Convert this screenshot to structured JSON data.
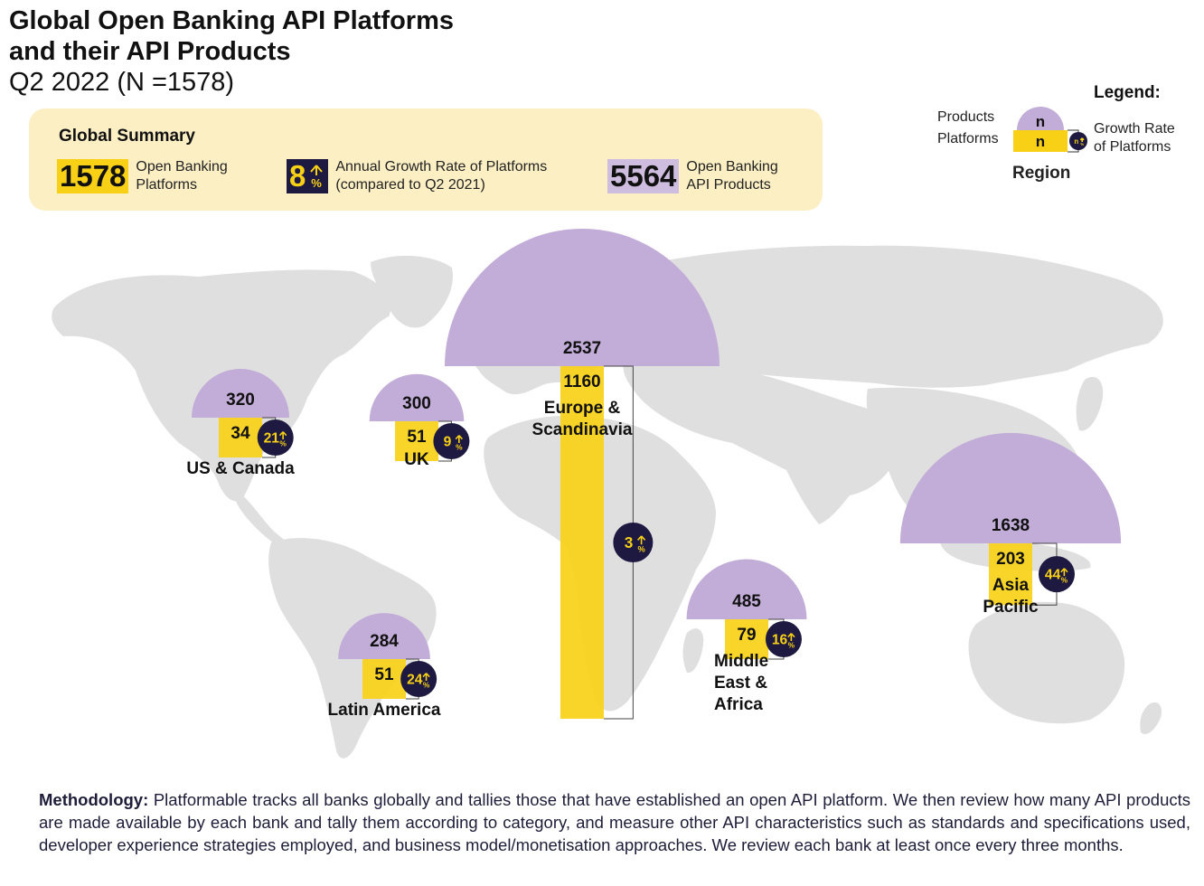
{
  "header": {
    "title_line1": "Global Open Banking API Platforms",
    "title_line2": "and their API Products",
    "subtitle": "Q2 2022 (N =1578)"
  },
  "summary": {
    "heading": "Global Summary",
    "platforms_value": "1578",
    "platforms_label_1": "Open Banking",
    "platforms_label_2": "Platforms",
    "growth_value": "8",
    "growth_label_1": "Annual Growth Rate of Platforms",
    "growth_label_2": "(compared to Q2 2021)",
    "products_value": "5564",
    "products_label_1": "Open Banking",
    "products_label_2": "API Products"
  },
  "legend": {
    "title": "Legend:",
    "products_label": "Products",
    "platforms_label": "Platforms",
    "n_symbol": "n",
    "growth_label_1": "Growth Rate",
    "growth_label_2": "of Platforms",
    "region_label": "Region"
  },
  "colors": {
    "products": "#c2acd8",
    "platforms": "#f8d117",
    "growth_badge": "#1d1940",
    "map": "#dfdfdf",
    "summary_bg": "#fcefc4"
  },
  "chart_data": {
    "type": "bar",
    "categories": [
      "US & Canada",
      "UK",
      "Europe & Scandinavia",
      "Latin America",
      "Middle East & Africa",
      "Asia Pacific"
    ],
    "series": [
      {
        "name": "Products",
        "values": [
          320,
          300,
          2537,
          284,
          485,
          1638
        ]
      },
      {
        "name": "Platforms",
        "values": [
          34,
          51,
          1160,
          51,
          79,
          203
        ]
      },
      {
        "name": "Growth Rate of Platforms",
        "values": [
          21,
          9,
          3,
          24,
          16,
          44
        ]
      }
    ],
    "regions": [
      {
        "label": [
          "US & Canada"
        ],
        "products": 320,
        "platforms": 34,
        "growth": 21
      },
      {
        "label": [
          "UK"
        ],
        "products": 300,
        "platforms": 51,
        "growth": 9
      },
      {
        "label": [
          "Europe &",
          "Scandinavia"
        ],
        "products": 2537,
        "platforms": 1160,
        "growth": 3
      },
      {
        "label": [
          "Latin America"
        ],
        "products": 284,
        "platforms": 51,
        "growth": 24
      },
      {
        "label": [
          "Middle",
          "East &",
          "Africa"
        ],
        "products": 485,
        "platforms": 79,
        "growth": 16
      },
      {
        "label": [
          "Asia",
          "Pacific"
        ],
        "products": 1638,
        "platforms": 203,
        "growth": 44
      }
    ],
    "growth_unit": "%"
  },
  "methodology": {
    "label": "Methodology:",
    "text": " Platformable tracks all banks globally and tallies those that have established an open API platform. We then review how many API products are made available by each bank and tally them according to category, and measure other API characteristics such as standards and specifications used, developer experience strategies employed, and business model/monetisation approaches. We review each bank at least once every three months."
  }
}
